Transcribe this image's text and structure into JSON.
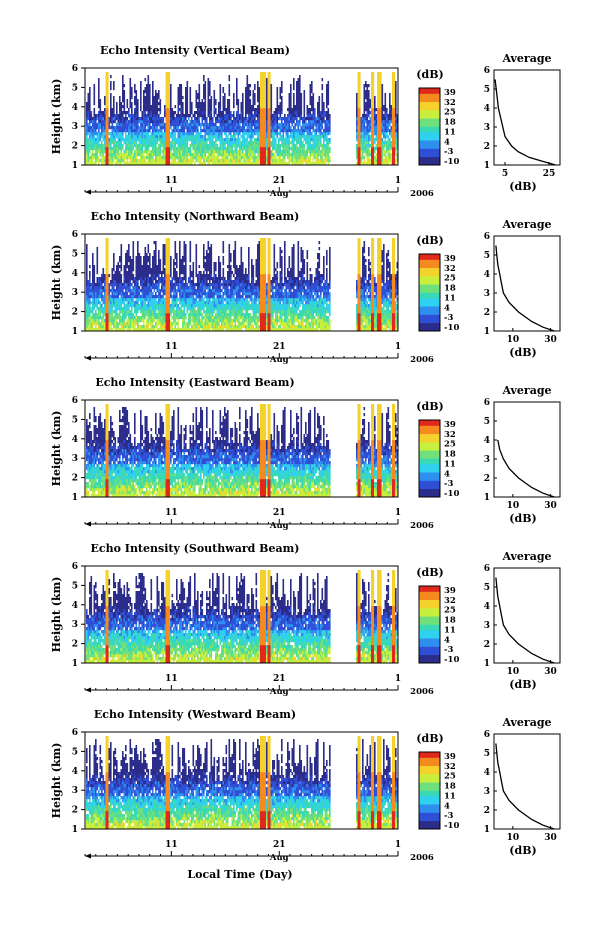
{
  "figure": {
    "xlabel": "Local Time (Day)",
    "month": "Aug",
    "year": "2006",
    "day_ticks": [
      "11",
      "21",
      "1"
    ],
    "colorbar_unit": "(dB)"
  },
  "panels": [
    {
      "title": "Echo Intensity (Vertical Beam)",
      "ylabel": "Height (km)",
      "yticks": [
        "1",
        "2",
        "3",
        "4",
        "5",
        "6"
      ],
      "colorbar_ticks": [
        "39",
        "32",
        "25",
        "18",
        "11",
        "4",
        "-3",
        "-10"
      ],
      "avg_title": "Average",
      "avg_xticks": [
        "5",
        "25"
      ],
      "avg_xlabel": "(dB)"
    },
    {
      "title": "Echo Intensity (Northward Beam)",
      "ylabel": "Height (km)",
      "yticks": [
        "1",
        "2",
        "3",
        "4",
        "5",
        "6"
      ],
      "colorbar_ticks": [
        "39",
        "32",
        "25",
        "18",
        "11",
        "4",
        "-3",
        "-10"
      ],
      "avg_title": "Average",
      "avg_xticks": [
        "10",
        "30"
      ],
      "avg_xlabel": "(dB)"
    },
    {
      "title": "Echo Intensity (Eastward Beam)",
      "ylabel": "Height (km)",
      "yticks": [
        "1",
        "2",
        "3",
        "4",
        "5",
        "6"
      ],
      "colorbar_ticks": [
        "39",
        "32",
        "25",
        "18",
        "11",
        "4",
        "-3",
        "-10"
      ],
      "avg_title": "Average",
      "avg_xticks": [
        "10",
        "30"
      ],
      "avg_xlabel": "(dB)"
    },
    {
      "title": "Echo Intensity (Southward Beam)",
      "ylabel": "Height (km)",
      "yticks": [
        "1",
        "2",
        "3",
        "4",
        "5",
        "6"
      ],
      "colorbar_ticks": [
        "39",
        "32",
        "25",
        "18",
        "11",
        "4",
        "-3",
        "-10"
      ],
      "avg_title": "Average",
      "avg_xticks": [
        "10",
        "30"
      ],
      "avg_xlabel": "(dB)"
    },
    {
      "title": "Echo Intensity (Westward Beam)",
      "ylabel": "Height (km)",
      "yticks": [
        "1",
        "2",
        "3",
        "4",
        "5",
        "6"
      ],
      "colorbar_ticks": [
        "39",
        "32",
        "25",
        "18",
        "11",
        "4",
        "-3",
        "-10"
      ],
      "avg_title": "Average",
      "avg_xticks": [
        "10",
        "30"
      ],
      "avg_xlabel": "(dB)"
    }
  ],
  "chart_data": [
    {
      "type": "heatmap",
      "title": "Echo Intensity (Vertical Beam)",
      "ylabel": "Height (km)",
      "xlabel": "Local Time (Day)",
      "x_range_days": [
        "2006-08-03",
        "2006-09-01"
      ],
      "ylim": [
        1,
        6
      ],
      "zlim_db": [
        -10,
        39
      ],
      "colormap": [
        "#2c2c8a",
        "#2f4fd6",
        "#2f8fee",
        "#2fd0f0",
        "#3ad9b5",
        "#6fe07a",
        "#c8ef3e",
        "#f5d12b",
        "#f58a1f",
        "#e0281c"
      ],
      "data_gaps_days": [
        [
          "2006-08-27",
          "2006-08-28"
        ]
      ],
      "average_profile": {
        "type": "line",
        "title": "Average",
        "xlabel": "(dB)",
        "ylim": [
          1,
          6
        ],
        "height_km": [
          1.0,
          1.2,
          1.4,
          1.7,
          2.0,
          2.5,
          3.0,
          3.5,
          4.0,
          4.5,
          5.0,
          5.5
        ],
        "value_db": [
          28,
          22,
          16,
          11,
          8,
          5,
          4,
          3,
          2,
          1.5,
          1,
          0.5
        ]
      }
    },
    {
      "type": "heatmap",
      "title": "Echo Intensity (Northward Beam)",
      "ylabel": "Height (km)",
      "x_range_days": [
        "2006-08-03",
        "2006-09-01"
      ],
      "ylim": [
        1,
        6
      ],
      "zlim_db": [
        -10,
        39
      ],
      "average_profile": {
        "type": "line",
        "title": "Average",
        "xlabel": "(dB)",
        "ylim": [
          1,
          6
        ],
        "height_km": [
          1.0,
          1.2,
          1.5,
          2.0,
          2.5,
          3.0,
          3.5,
          4.0,
          4.5,
          5.0,
          5.5
        ],
        "value_db": [
          32,
          26,
          20,
          13,
          8,
          5,
          4,
          3,
          2,
          1.5,
          1
        ]
      }
    },
    {
      "type": "heatmap",
      "title": "Echo Intensity (Eastward Beam)",
      "ylabel": "Height (km)",
      "x_range_days": [
        "2006-08-03",
        "2006-09-01"
      ],
      "ylim": [
        1,
        6
      ],
      "zlim_db": [
        -10,
        39
      ],
      "average_profile": {
        "type": "line",
        "title": "Average",
        "xlabel": "(dB)",
        "ylim": [
          1,
          6
        ],
        "height_km": [
          1.0,
          1.2,
          1.5,
          2.0,
          2.5,
          3.0,
          3.5,
          4.0
        ],
        "value_db": [
          32,
          26,
          20,
          13,
          8,
          5,
          3,
          2
        ]
      }
    },
    {
      "type": "heatmap",
      "title": "Echo Intensity (Southward Beam)",
      "ylabel": "Height (km)",
      "x_range_days": [
        "2006-08-03",
        "2006-09-01"
      ],
      "ylim": [
        1,
        6
      ],
      "zlim_db": [
        -10,
        39
      ],
      "average_profile": {
        "type": "line",
        "title": "Average",
        "xlabel": "(dB)",
        "ylim": [
          1,
          6
        ],
        "height_km": [
          1.0,
          1.2,
          1.5,
          2.0,
          2.5,
          3.0,
          3.5,
          4.0,
          4.5,
          5.0,
          5.5
        ],
        "value_db": [
          32,
          26,
          20,
          13,
          8,
          5,
          4,
          3,
          2,
          1.5,
          1
        ]
      }
    },
    {
      "type": "heatmap",
      "title": "Echo Intensity (Westward Beam)",
      "ylabel": "Height (km)",
      "x_range_days": [
        "2006-08-03",
        "2006-09-01"
      ],
      "ylim": [
        1,
        6
      ],
      "zlim_db": [
        -10,
        39
      ],
      "average_profile": {
        "type": "line",
        "title": "Average",
        "xlabel": "(dB)",
        "ylim": [
          1,
          6
        ],
        "height_km": [
          1.0,
          1.2,
          1.5,
          2.0,
          2.5,
          3.0,
          3.5,
          4.0,
          4.5,
          5.0,
          5.5
        ],
        "value_db": [
          32,
          26,
          20,
          13,
          8,
          5,
          4,
          3,
          2,
          1.5,
          1
        ]
      }
    }
  ]
}
